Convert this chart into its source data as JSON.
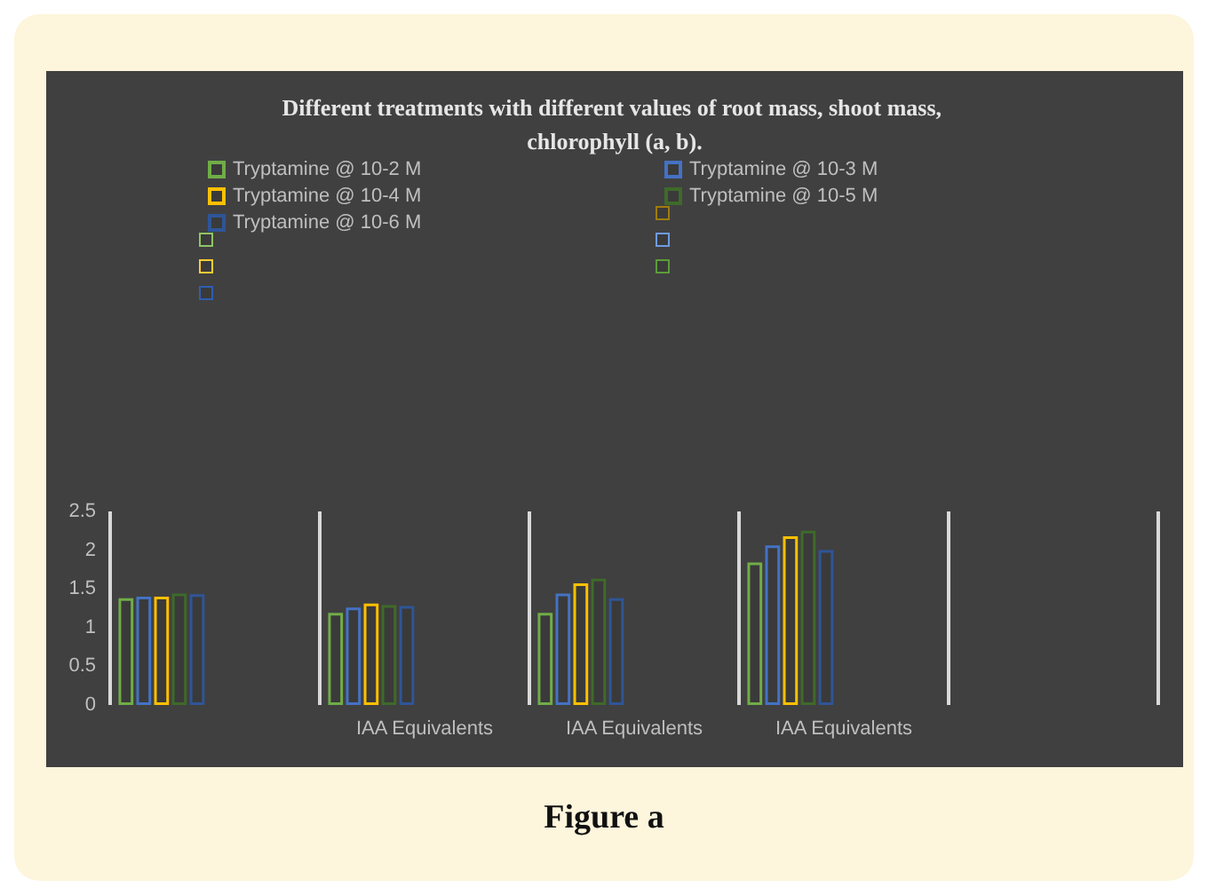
{
  "chart_data": {
    "type": "bar",
    "title": "Different treatments with different values of root mass, shoot mass, chlorophyll (a, b).",
    "categories": [
      null,
      "IAA Equivalents",
      "IAA Equivalents",
      "IAA Equivalents",
      null
    ],
    "series": [
      {
        "name": "Tryptamine @ 10-2 M",
        "color": "#70ad47",
        "values": [
          1.38,
          1.19,
          1.19,
          1.84,
          null
        ]
      },
      {
        "name": "Tryptamine @ 10-3 M",
        "color": "#4472c4",
        "values": [
          1.4,
          1.26,
          1.44,
          2.06,
          null
        ]
      },
      {
        "name": "Tryptamine @ 10-4 M",
        "color": "#ffc000",
        "values": [
          1.4,
          1.31,
          1.57,
          2.18,
          null
        ]
      },
      {
        "name": "Tryptamine @ 10-5 M",
        "color": "#3f6a2a",
        "values": [
          1.44,
          1.29,
          1.63,
          2.25,
          null
        ]
      },
      {
        "name": "Tryptamine @ 10-6 M",
        "color": "#2f5597",
        "values": [
          1.43,
          1.28,
          1.38,
          2.0,
          null
        ]
      },
      {
        "color": "#9e7c0c",
        "values": [
          null,
          null,
          null,
          null,
          null
        ]
      },
      {
        "color": "#8fc565",
        "values": [
          null,
          null,
          null,
          null,
          null
        ]
      },
      {
        "color": "#6f9be0",
        "values": [
          null,
          null,
          null,
          null,
          null
        ]
      },
      {
        "color": "#ffcd33",
        "values": [
          null,
          null,
          null,
          null,
          null
        ]
      },
      {
        "color": "#5b9c3a",
        "values": [
          null,
          null,
          null,
          null,
          null
        ]
      },
      {
        "color": "#2e5eb0",
        "values": [
          null,
          null,
          null,
          null,
          null
        ]
      }
    ],
    "ylim": [
      0,
      2.5
    ],
    "yticks": [
      0,
      0.5,
      1,
      1.5,
      2,
      2.5
    ],
    "grid": "x",
    "legend": "top",
    "annotations": [
      "Figure a"
    ]
  }
}
